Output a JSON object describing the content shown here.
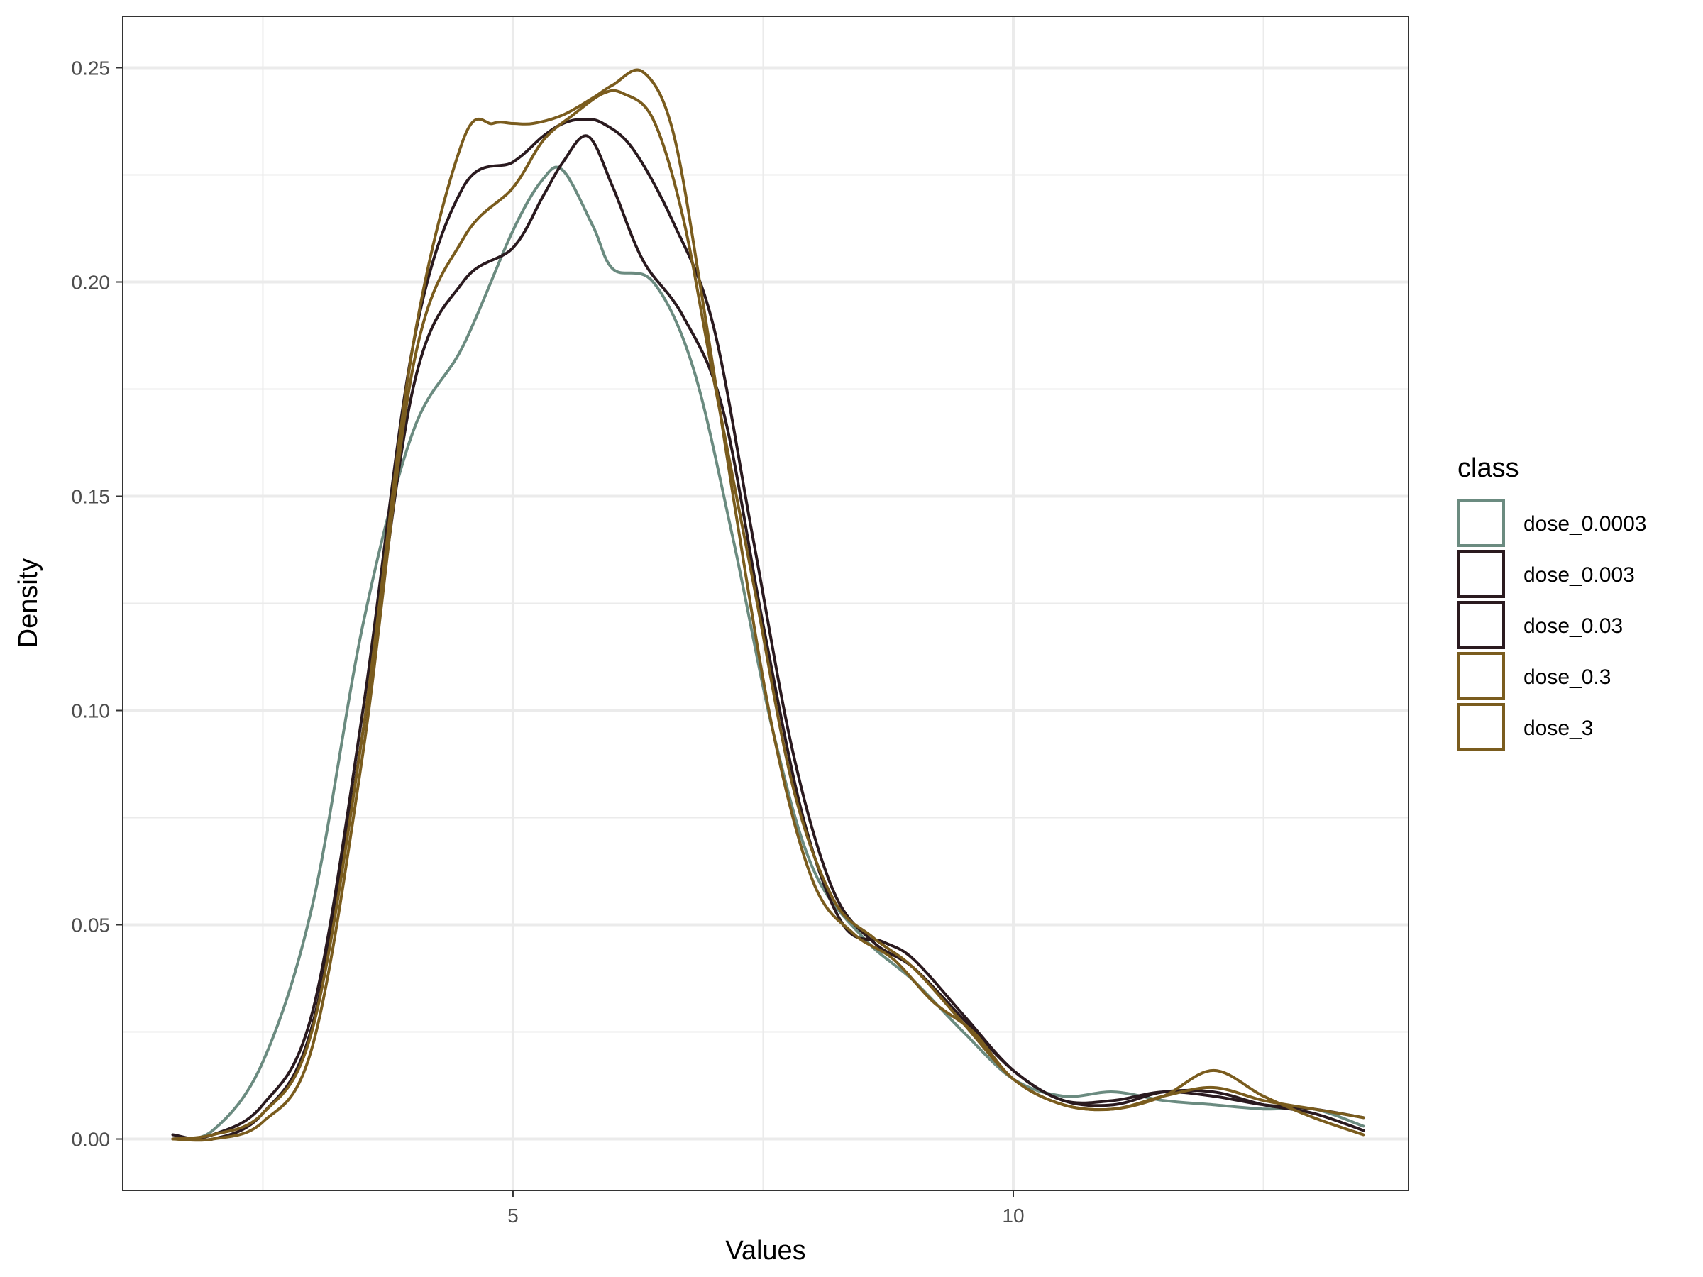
{
  "chart_data": {
    "type": "line",
    "title": "",
    "xlabel": "Values",
    "ylabel": "Density",
    "xlim": [
      1.1,
      13.95
    ],
    "ylim": [
      -0.012,
      0.262
    ],
    "x_ticks": [
      5,
      10
    ],
    "x_tick_labels": [
      "5",
      "10"
    ],
    "y_ticks": [
      0,
      0.05,
      0.1,
      0.15,
      0.2,
      0.25
    ],
    "y_tick_labels": [
      "0.00",
      "0.05",
      "0.10",
      "0.15",
      "0.20",
      "0.25"
    ],
    "grid": true,
    "legend": {
      "title": "class",
      "position": "right"
    },
    "series": [
      {
        "name": "dose_0.0003",
        "color": "#6B8B80",
        "x": [
          1.6,
          2.0,
          2.5,
          3.0,
          3.5,
          4.0,
          4.5,
          5.0,
          5.3,
          5.5,
          5.8,
          6.0,
          6.4,
          6.8,
          7.2,
          7.6,
          8.0,
          8.5,
          9.0,
          9.5,
          10.0,
          10.5,
          11.0,
          11.5,
          12.0,
          12.5,
          13.0,
          13.5
        ],
        "y": [
          0.0,
          0.002,
          0.018,
          0.055,
          0.12,
          0.165,
          0.185,
          0.212,
          0.224,
          0.226,
          0.213,
          0.203,
          0.2,
          0.18,
          0.14,
          0.095,
          0.063,
          0.047,
          0.037,
          0.025,
          0.014,
          0.01,
          0.011,
          0.009,
          0.008,
          0.007,
          0.007,
          0.003
        ]
      },
      {
        "name": "dose_0.003",
        "color": "#2A1A1F",
        "x": [
          1.6,
          2.0,
          2.5,
          3.0,
          3.5,
          4.0,
          4.5,
          5.0,
          5.3,
          5.5,
          5.7,
          5.9,
          6.2,
          6.6,
          7.0,
          7.4,
          7.8,
          8.2,
          8.6,
          9.0,
          9.5,
          10.0,
          10.5,
          11.0,
          11.5,
          12.0,
          12.5,
          13.0,
          13.5
        ],
        "y": [
          0.0,
          0.001,
          0.008,
          0.03,
          0.1,
          0.185,
          0.222,
          0.228,
          0.234,
          0.237,
          0.238,
          0.237,
          0.231,
          0.214,
          0.19,
          0.14,
          0.09,
          0.058,
          0.046,
          0.04,
          0.028,
          0.016,
          0.009,
          0.009,
          0.011,
          0.01,
          0.008,
          0.007,
          0.005
        ]
      },
      {
        "name": "dose_0.03",
        "color": "#2A1A1F",
        "x": [
          1.6,
          2.0,
          2.5,
          3.0,
          3.5,
          4.0,
          4.5,
          5.0,
          5.3,
          5.5,
          5.75,
          6.0,
          6.3,
          6.7,
          7.1,
          7.5,
          7.9,
          8.3,
          8.7,
          9.0,
          9.5,
          10.0,
          10.5,
          11.0,
          11.5,
          12.0,
          12.5,
          13.0,
          13.5
        ],
        "y": [
          0.001,
          0.0,
          0.006,
          0.027,
          0.095,
          0.175,
          0.2,
          0.208,
          0.22,
          0.228,
          0.234,
          0.222,
          0.205,
          0.192,
          0.17,
          0.12,
          0.075,
          0.05,
          0.046,
          0.042,
          0.029,
          0.016,
          0.009,
          0.008,
          0.011,
          0.011,
          0.008,
          0.006,
          0.002
        ]
      },
      {
        "name": "dose_0.3",
        "color": "#7A5C1E",
        "x": [
          1.6,
          2.0,
          2.5,
          3.0,
          3.5,
          4.0,
          4.5,
          4.8,
          5.0,
          5.2,
          5.5,
          5.8,
          6.0,
          6.3,
          6.6,
          6.9,
          7.2,
          7.6,
          8.0,
          8.4,
          8.8,
          9.2,
          9.6,
          10.0,
          10.5,
          11.0,
          11.5,
          12.0,
          12.5,
          13.0,
          13.5
        ],
        "y": [
          0.0,
          0.001,
          0.006,
          0.026,
          0.095,
          0.185,
          0.233,
          0.237,
          0.237,
          0.237,
          0.239,
          0.243,
          0.246,
          0.249,
          0.235,
          0.195,
          0.15,
          0.095,
          0.06,
          0.048,
          0.042,
          0.032,
          0.025,
          0.014,
          0.008,
          0.007,
          0.01,
          0.016,
          0.01,
          0.005,
          0.001
        ]
      },
      {
        "name": "dose_3",
        "color": "#7A5C1E",
        "x": [
          1.6,
          2.0,
          2.5,
          3.0,
          3.5,
          4.0,
          4.5,
          5.0,
          5.3,
          5.6,
          5.9,
          6.1,
          6.4,
          6.7,
          7.0,
          7.4,
          7.8,
          8.2,
          8.6,
          9.0,
          9.5,
          10.0,
          10.5,
          11.0,
          11.5,
          12.0,
          12.5,
          13.0,
          13.5
        ],
        "y": [
          0.0,
          0.0,
          0.004,
          0.022,
          0.09,
          0.18,
          0.21,
          0.222,
          0.233,
          0.239,
          0.244,
          0.244,
          0.238,
          0.215,
          0.178,
          0.13,
          0.082,
          0.056,
          0.047,
          0.04,
          0.027,
          0.014,
          0.008,
          0.007,
          0.01,
          0.012,
          0.009,
          0.007,
          0.005
        ]
      }
    ]
  }
}
